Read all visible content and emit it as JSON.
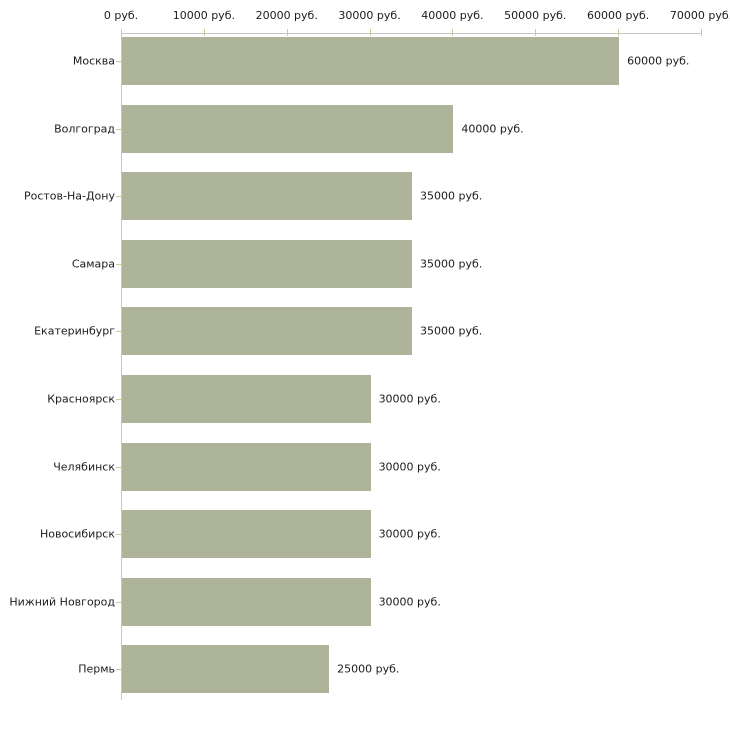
{
  "chart_data": {
    "type": "bar",
    "orientation": "horizontal",
    "title": "",
    "xlabel": "",
    "ylabel": "",
    "unit": "руб.",
    "categories": [
      "Москва",
      "Волгоград",
      "Ростов-На-Дону",
      "Самара",
      "Екатеринбург",
      "Красноярск",
      "Челябинск",
      "Новосибирск",
      "Нижний Новгород",
      "Пермь"
    ],
    "values": [
      60000,
      40000,
      35000,
      35000,
      35000,
      30000,
      30000,
      30000,
      30000,
      25000
    ],
    "value_labels": [
      "60000 руб.",
      "40000 руб.",
      "35000 руб.",
      "35000 руб.",
      "35000 руб.",
      "30000 руб.",
      "30000 руб.",
      "30000 руб.",
      "30000 руб.",
      "25000 руб."
    ],
    "x_ticks": [
      0,
      10000,
      20000,
      30000,
      40000,
      50000,
      60000,
      70000
    ],
    "x_tick_labels": [
      "0 руб.",
      "10000 руб.",
      "20000 руб.",
      "30000 руб.",
      "40000 руб.",
      "50000 руб.",
      "60000 руб.",
      "70000 руб."
    ],
    "xlim": [
      0,
      70000
    ],
    "grid": false,
    "legend": false,
    "colors": {
      "bar": "#adb49a",
      "axis_line": "#c6c6c6",
      "tick": "#ccc8a0",
      "text": "#1c1c1c",
      "background": "#ffffff"
    }
  }
}
